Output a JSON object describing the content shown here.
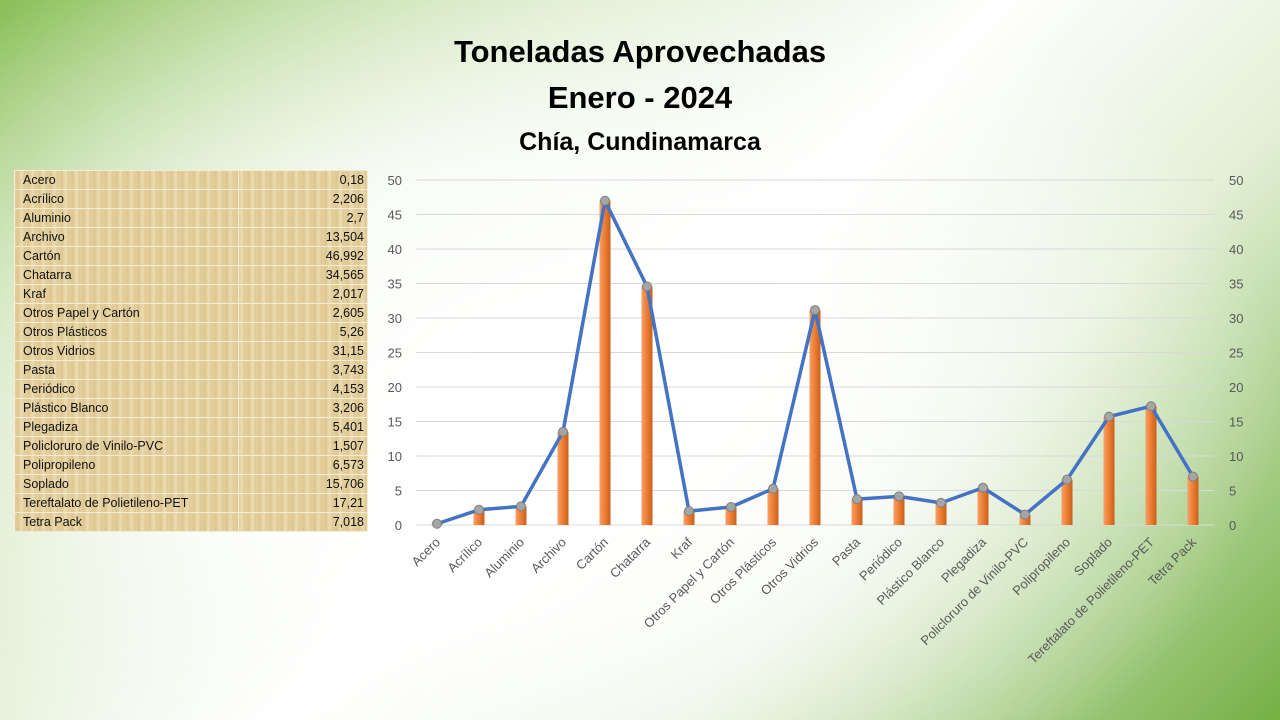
{
  "header": {
    "title_line1": "Toneladas Aprovechadas",
    "title_line2": "Enero - 2024",
    "subtitle": "Chía, Cundinamarca"
  },
  "table": {
    "rows": [
      {
        "label": "Acero",
        "value": "0,18"
      },
      {
        "label": "Acrílico",
        "value": "2,206"
      },
      {
        "label": "Aluminio",
        "value": "2,7"
      },
      {
        "label": "Archivo",
        "value": "13,504"
      },
      {
        "label": "Cartón",
        "value": "46,992"
      },
      {
        "label": "Chatarra",
        "value": "34,565"
      },
      {
        "label": "Kraf",
        "value": "2,017"
      },
      {
        "label": "Otros Papel y Cartón",
        "value": "2,605"
      },
      {
        "label": "Otros Plásticos",
        "value": "5,26"
      },
      {
        "label": "Otros Vidrios",
        "value": "31,15"
      },
      {
        "label": "Pasta",
        "value": "3,743"
      },
      {
        "label": "Periódico",
        "value": "4,153"
      },
      {
        "label": "Plástico Blanco",
        "value": "3,206"
      },
      {
        "label": "Plegadiza",
        "value": "5,401"
      },
      {
        "label": "Policloruro de Vinilo-PVC",
        "value": "1,507"
      },
      {
        "label": "Polipropileno",
        "value": "6,573"
      },
      {
        "label": "Soplado",
        "value": "15,706"
      },
      {
        "label": "Tereftalato de Polietileno-PET",
        "value": "17,21"
      },
      {
        "label": "Tetra Pack",
        "value": "7,018"
      }
    ]
  },
  "chart_data": {
    "type": "bar",
    "title": "Toneladas Aprovechadas Enero - 2024",
    "categories": [
      "Acero",
      "Acrílico",
      "Aluminio",
      "Archivo",
      "Cartón",
      "Chatarra",
      "Kraf",
      "Otros Papel y Cartón",
      "Otros Plásticos",
      "Otros Vidrios",
      "Pasta",
      "Periódico",
      "Plástico Blanco",
      "Plegadiza",
      "Policloruro de Vinilo-PVC",
      "Polipropileno",
      "Soplado",
      "Tereftalato de Polietileno-PET",
      "Tetra Pack"
    ],
    "series": [
      {
        "name": "Toneladas (barras)",
        "type": "bar",
        "color": "#ed7d31",
        "values": [
          0.18,
          2.206,
          2.7,
          13.504,
          46.992,
          34.565,
          2.017,
          2.605,
          5.26,
          31.15,
          3.743,
          4.153,
          3.206,
          5.401,
          1.507,
          6.573,
          15.706,
          17.21,
          7.018
        ]
      },
      {
        "name": "Toneladas (línea)",
        "type": "line",
        "color": "#4472c4",
        "values": [
          0.18,
          2.206,
          2.7,
          13.504,
          46.992,
          34.565,
          2.017,
          2.605,
          5.26,
          31.15,
          3.743,
          4.153,
          3.206,
          5.401,
          1.507,
          6.573,
          15.706,
          17.21,
          7.018
        ]
      }
    ],
    "ylim": [
      0,
      50
    ],
    "yticks": [
      0,
      5,
      10,
      15,
      20,
      25,
      30,
      35,
      40,
      45,
      50
    ],
    "y2lim": [
      0,
      50
    ],
    "grid": true,
    "xlabel": "",
    "ylabel": ""
  }
}
